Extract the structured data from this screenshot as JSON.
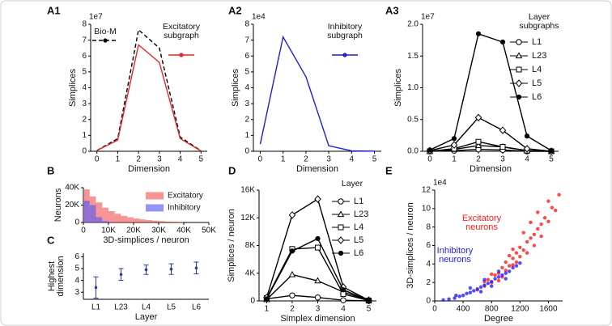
{
  "chart_data": [
    {
      "panel": "A1",
      "type": "line",
      "offset_label": "1e7",
      "xlabel": "Dimension",
      "ylabel": "Simplices",
      "x": [
        0,
        1,
        2,
        3,
        4,
        5
      ],
      "xlim": [
        -0.3,
        5.3
      ],
      "xticks": [
        0,
        1,
        2,
        3,
        4,
        5
      ],
      "ylim": [
        0,
        8
      ],
      "yticks": [
        0,
        1,
        2,
        3,
        4,
        5,
        6,
        7,
        8
      ],
      "series": [
        {
          "name": "Bio-M",
          "color": "#000000",
          "dash": true,
          "values": [
            0.05,
            0.8,
            7.65,
            6.5,
            0.9,
            0.03
          ]
        },
        {
          "name": "Excitatory subgraph",
          "color": "#e8262a",
          "values": [
            0.05,
            0.7,
            6.7,
            5.6,
            0.8,
            0.02
          ]
        }
      ]
    },
    {
      "panel": "A2",
      "type": "line",
      "offset_label": "1e4",
      "xlabel": "Dimension",
      "ylabel": "Simplices",
      "x": [
        0,
        1,
        2,
        3,
        4,
        5
      ],
      "xlim": [
        -0.3,
        5.3
      ],
      "xticks": [
        0,
        1,
        2,
        3,
        4,
        5
      ],
      "ylim": [
        0,
        8
      ],
      "yticks": [
        0,
        1,
        2,
        3,
        4,
        5,
        6,
        7,
        8
      ],
      "series": [
        {
          "name": "Inhibitory subgraph",
          "color": "#1f1fd6",
          "values": [
            0.45,
            7.2,
            4.7,
            0.35,
            0.03,
            0.01
          ]
        }
      ]
    },
    {
      "panel": "A3",
      "type": "line",
      "offset_label": "1e7",
      "xlabel": "Dimension",
      "ylabel": "Simplices",
      "legend_title": "Layer subgraphs",
      "x": [
        0,
        1,
        2,
        3,
        4,
        5
      ],
      "xlim": [
        -0.3,
        5.3
      ],
      "xticks": [
        0,
        1,
        2,
        3,
        4,
        5
      ],
      "ylim": [
        0,
        2
      ],
      "yticks": [
        {
          "value": 0,
          "label": "0.0"
        },
        0.5,
        {
          "value": 1,
          "label": "1.0"
        },
        1.5,
        {
          "value": 2,
          "label": "2.0"
        }
      ],
      "series": [
        {
          "name": "L1",
          "color": "#000000",
          "marker": "circle-open",
          "values": [
            0.0,
            0.01,
            0.03,
            0.02,
            0.0,
            0.0
          ]
        },
        {
          "name": "L23",
          "color": "#000000",
          "marker": "triangle-open",
          "values": [
            0.0,
            0.03,
            0.09,
            0.07,
            0.01,
            0.0
          ]
        },
        {
          "name": "L4",
          "color": "#000000",
          "marker": "square-open",
          "values": [
            0.0,
            0.04,
            0.15,
            0.07,
            0.01,
            0.0
          ]
        },
        {
          "name": "L5",
          "color": "#000000",
          "marker": "diamond-open",
          "values": [
            0.01,
            0.1,
            0.53,
            0.33,
            0.04,
            0.0
          ]
        },
        {
          "name": "L6",
          "color": "#000000",
          "marker": "circle",
          "values": [
            0.02,
            0.2,
            1.85,
            1.72,
            0.24,
            0.01
          ]
        }
      ]
    },
    {
      "panel": "B",
      "type": "histogram",
      "xlabel": "3D-simplices / neuron",
      "ylabel": "Neurons",
      "bins": [
        0,
        2500,
        5000,
        7500,
        10000,
        12500,
        15000,
        17500,
        20000,
        22500,
        25000,
        27500,
        30000,
        32500,
        35000,
        37500,
        40000
      ],
      "xlim": [
        0,
        50000
      ],
      "xticks": [
        0,
        {
          "value": 10000,
          "label": "10K"
        },
        {
          "value": 20000,
          "label": "20K"
        },
        {
          "value": 30000,
          "label": "30K"
        },
        {
          "value": 40000,
          "label": "40K"
        },
        {
          "value": 50000,
          "label": "50K"
        }
      ],
      "ylim": [
        0,
        40000
      ],
      "yticks": [
        0,
        {
          "value": 20000,
          "label": "20K"
        },
        {
          "value": 40000,
          "label": "40K"
        }
      ],
      "series": [
        {
          "name": "Excitatory",
          "color": "#f25a5a",
          "values": [
            38000,
            30000,
            23000,
            17000,
            13000,
            10000,
            7500,
            6000,
            4500,
            3500,
            2700,
            2000,
            1500,
            1100,
            800,
            600
          ]
        },
        {
          "name": "Inhibitory",
          "color": "#5a5af2",
          "values": [
            25000,
            20000,
            6000,
            1500,
            300,
            100,
            0,
            0,
            0,
            0,
            0,
            0,
            0,
            0,
            0,
            0
          ]
        }
      ]
    },
    {
      "panel": "C",
      "type": "errorbar",
      "xlabel": "Layer",
      "ylabel": "Highest dimension",
      "color": "#2a3a9e",
      "categories": [
        "L1",
        "L23",
        "L4",
        "L5",
        "L6"
      ],
      "values": [
        3.4,
        4.5,
        4.9,
        4.95,
        5.05
      ],
      "errors": [
        0.9,
        0.5,
        0.4,
        0.45,
        0.5
      ],
      "ylim": [
        2.4,
        6.3
      ],
      "yticks": [
        3,
        4,
        5,
        6
      ]
    },
    {
      "panel": "D",
      "type": "line",
      "xlabel": "Simplex dimension",
      "ylabel": "Simplices / neuron",
      "legend_title": "Layer",
      "x": [
        1,
        2,
        3,
        4,
        5
      ],
      "xlim": [
        0.7,
        5.3
      ],
      "xticks": [
        1,
        2,
        3,
        4,
        5
      ],
      "ylim": [
        0,
        16000
      ],
      "yticks": [
        0,
        {
          "value": 4000,
          "label": "4K"
        },
        {
          "value": 8000,
          "label": "8K"
        },
        {
          "value": 12000,
          "label": "12K"
        },
        {
          "value": 16000,
          "label": "16K"
        }
      ],
      "series": [
        {
          "name": "L1",
          "color": "#000000",
          "marker": "circle-open",
          "values": [
            300,
            800,
            500,
            100,
            0
          ]
        },
        {
          "name": "L23",
          "color": "#000000",
          "marker": "triangle-open",
          "values": [
            200,
            3800,
            2900,
            1300,
            50
          ]
        },
        {
          "name": "L4",
          "color": "#000000",
          "marker": "square-open",
          "values": [
            400,
            7500,
            7700,
            1000,
            50
          ]
        },
        {
          "name": "L5",
          "color": "#000000",
          "marker": "diamond-open",
          "values": [
            500,
            12400,
            14700,
            2000,
            100
          ]
        },
        {
          "name": "L6",
          "color": "#000000",
          "marker": "circle",
          "values": [
            300,
            7200,
            9000,
            1600,
            80
          ]
        }
      ]
    },
    {
      "panel": "E",
      "type": "scatter",
      "offset_label": "1e4",
      "xlabel": "Degree",
      "ylabel": "3D-simplices / neuron",
      "xlim": [
        0,
        1800
      ],
      "xticks": [
        0,
        400,
        800,
        1200,
        1600
      ],
      "ylim": [
        0,
        12
      ],
      "yticks": [
        0,
        2,
        4,
        6,
        8,
        10,
        12
      ],
      "series": [
        {
          "name": "Excitatory neurons",
          "color": "#ff1a1a",
          "x": [
            600,
            700,
            750,
            800,
            850,
            900,
            900,
            950,
            1000,
            1000,
            1050,
            1100,
            1100,
            1150,
            1200,
            1200,
            1250,
            1300,
            1300,
            1350,
            1400,
            1400,
            1450,
            1500,
            1500,
            1550,
            1600,
            1650,
            1700,
            1750,
            1100,
            1250,
            950,
            1050,
            1350,
            1150,
            800,
            700,
            1450,
            1600
          ],
          "y": [
            1.2,
            1.6,
            2.3,
            2.0,
            2.8,
            3.0,
            2.2,
            3.6,
            3.3,
            4.2,
            3.8,
            4.6,
            3.9,
            5.2,
            4.8,
            5.8,
            5.5,
            6.4,
            5.2,
            6.8,
            7.2,
            6.0,
            7.8,
            8.3,
            7.0,
            9.0,
            8.6,
            10.1,
            9.8,
            11.5,
            5.6,
            7.4,
            2.6,
            4.9,
            8.5,
            4.2,
            2.9,
            2.1,
            9.6,
            10.8
          ]
        },
        {
          "name": "Inhibitory neurons",
          "color": "#2020ff",
          "x": [
            120,
            200,
            280,
            350,
            400,
            450,
            500,
            550,
            600,
            650,
            700,
            750,
            800,
            850,
            900,
            950,
            1000,
            1050,
            1100,
            1150,
            1200,
            500,
            650,
            800,
            900,
            1000,
            300,
            700
          ],
          "y": [
            0.1,
            0.2,
            0.3,
            0.5,
            0.6,
            0.8,
            0.9,
            1.1,
            1.3,
            1.5,
            1.7,
            1.9,
            2.1,
            2.4,
            2.6,
            2.8,
            3.0,
            3.2,
            3.6,
            3.8,
            4.1,
            1.4,
            1.0,
            1.6,
            3.2,
            2.4,
            0.6,
            2.3
          ]
        }
      ]
    }
  ]
}
